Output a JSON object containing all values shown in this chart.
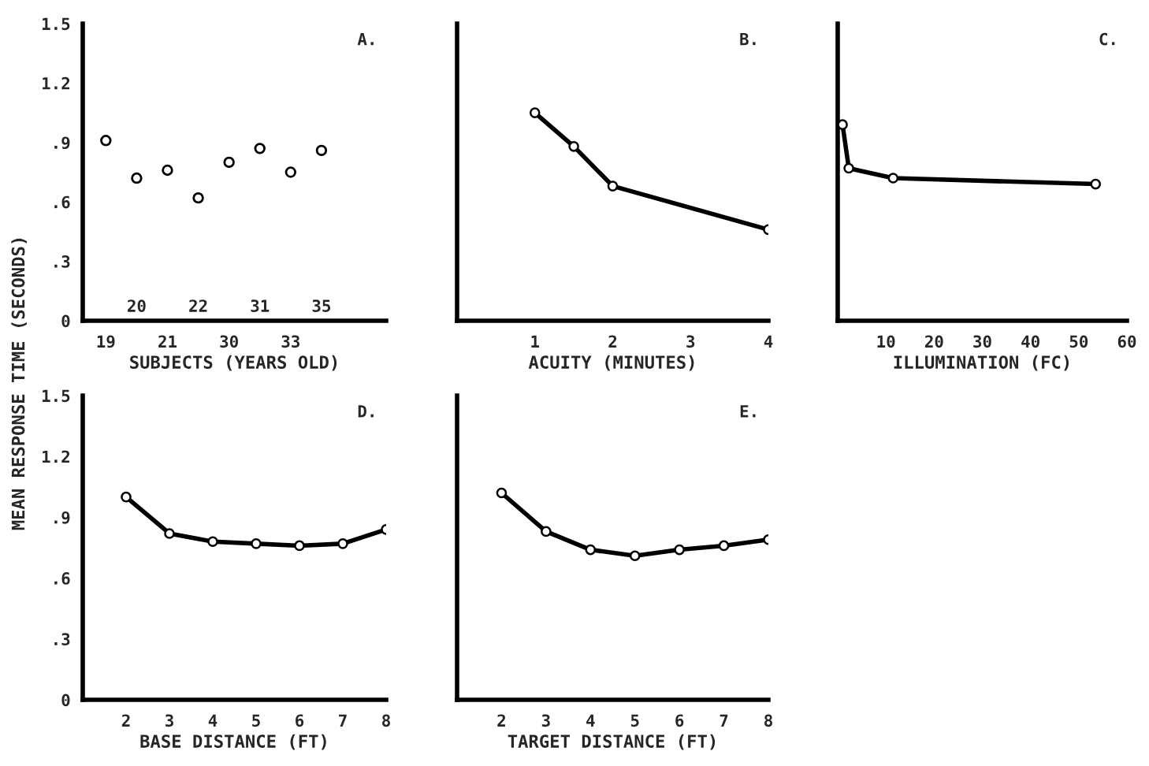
{
  "chart_data": [
    {
      "type": "scatter",
      "xlabel": "SUBJECTS (YEARS OLD)",
      "ylabel": "MEAN RESPONSE TIME (SECONDS)",
      "annotations": [
        "A."
      ],
      "marker": "circle",
      "categories": [
        "19",
        "20",
        "21",
        "22",
        "30",
        "31",
        "33",
        "35"
      ],
      "series": [
        {
          "color": "#000000",
          "values": [
            0.91,
            0.72,
            0.76,
            0.62,
            0.8,
            0.87,
            0.75,
            0.86
          ]
        }
      ],
      "ylim": [
        0,
        1.5
      ],
      "yticks": [
        0,
        {
          "value": 0.3,
          "label": ".3"
        },
        {
          "value": 0.6,
          "label": ".6"
        },
        {
          "value": 0.9,
          "label": ".9"
        },
        1.2,
        1.5
      ]
    },
    {
      "type": "line",
      "xlabel": "ACUITY (MINUTES)",
      "annotations": [
        "B."
      ],
      "marker": "circle",
      "tick_labels": "x",
      "x": [
        1,
        1.5,
        2,
        4
      ],
      "series": [
        {
          "color": "#000000",
          "values": [
            1.05,
            0.88,
            0.68,
            0.46
          ]
        }
      ],
      "xlim": [
        0,
        4
      ],
      "xticks": [
        1,
        2,
        3,
        4
      ],
      "ylim": [
        0,
        1.5
      ]
    },
    {
      "type": "line",
      "xlabel": "ILLUMINATION (FC)",
      "annotations": [
        "C."
      ],
      "marker": "circle",
      "tick_labels": "x",
      "x": [
        1,
        2.3,
        11.5,
        53.5
      ],
      "series": [
        {
          "color": "#000000",
          "values": [
            0.99,
            0.77,
            0.72,
            0.69
          ]
        }
      ],
      "xlim": [
        0,
        60
      ],
      "xticks": [
        10,
        20,
        30,
        40,
        50,
        60
      ],
      "ylim": [
        0,
        1.5
      ]
    },
    {
      "type": "line",
      "xlabel": "BASE DISTANCE (FT)",
      "annotations": [
        "D."
      ],
      "marker": "circle",
      "x": [
        2,
        3,
        4,
        5,
        6,
        7,
        8
      ],
      "series": [
        {
          "color": "#000000",
          "values": [
            1.0,
            0.82,
            0.78,
            0.77,
            0.76,
            0.77,
            0.84
          ]
        }
      ],
      "xlim": [
        1,
        8
      ],
      "xticks": [
        2,
        3,
        4,
        5,
        6,
        7,
        8
      ],
      "ylim": [
        0,
        1.5
      ],
      "yticks": [
        0,
        {
          "value": 0.3,
          "label": ".3"
        },
        {
          "value": 0.6,
          "label": ".6"
        },
        {
          "value": 0.9,
          "label": ".9"
        },
        1.2,
        1.5
      ]
    },
    {
      "type": "line",
      "xlabel": "TARGET DISTANCE (FT)",
      "annotations": [
        "E."
      ],
      "marker": "circle",
      "tick_labels": "x",
      "x": [
        2,
        3,
        4,
        5,
        6,
        7,
        8
      ],
      "series": [
        {
          "color": "#000000",
          "values": [
            1.02,
            0.83,
            0.74,
            0.71,
            0.74,
            0.76,
            0.79
          ]
        }
      ],
      "xlim": [
        1,
        8
      ],
      "xticks": [
        2,
        3,
        4,
        5,
        6,
        7,
        8
      ],
      "ylim": [
        0,
        1.5
      ]
    }
  ]
}
